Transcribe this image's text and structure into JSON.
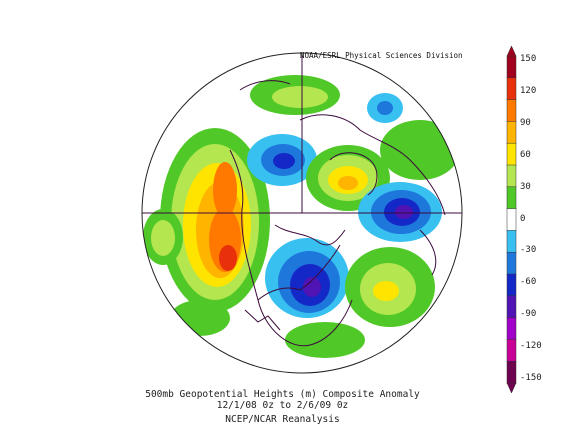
{
  "credit": "NOAA/ESRL Physical Sciences Division",
  "caption": {
    "line1": "500mb Geopotential Heights (m)   Composite Anomaly",
    "line2": "12/1/08 0z  to 2/6/09 0z",
    "line3": "NCEP/NCAR Reanalysis"
  },
  "colorbar": {
    "ticks": [
      "150",
      "120",
      "90",
      "60",
      "30",
      "0",
      "-30",
      "-60",
      "-90",
      "-120",
      "-150"
    ],
    "colors": [
      "#a0001e",
      "#e8300a",
      "#ff7800",
      "#ffb400",
      "#ffe400",
      "#b4e650",
      "#50c828",
      "#ffffff",
      "#38c0f0",
      "#1e78dc",
      "#1428c8",
      "#5014b4",
      "#a000c8",
      "#c80096",
      "#6e0050"
    ]
  },
  "legend_colors": {
    "positive": [
      "#50c828",
      "#b4e650",
      "#ffe400",
      "#ffb400",
      "#ff7800",
      "#e8300a"
    ],
    "negative": [
      "#38c0f0",
      "#1e78dc",
      "#1428c8",
      "#5014b4"
    ]
  }
}
